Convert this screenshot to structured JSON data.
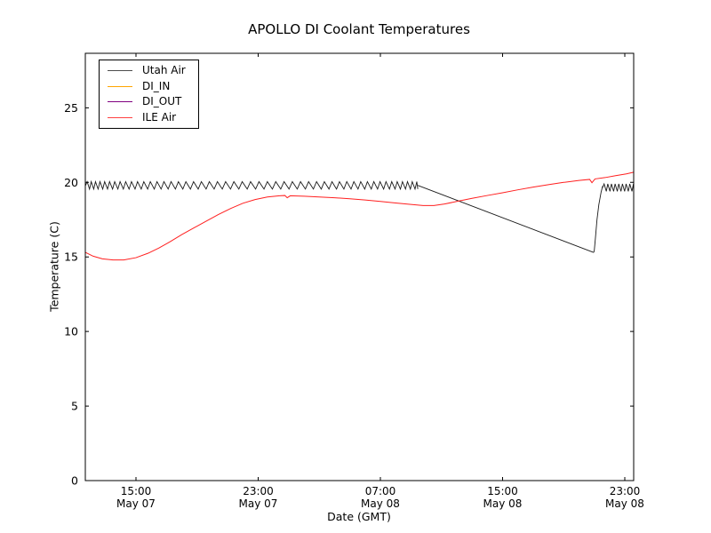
{
  "chart_data": {
    "type": "line",
    "title": "APOLLO DI Coolant Temperatures",
    "xlabel": "Date (GMT)",
    "ylabel": "Temperature (C)",
    "x_unit": "hours since May 07 00:00 GMT",
    "xlim": [
      11.7,
      47.58
    ],
    "ylim": [
      0,
      28.66
    ],
    "grid": false,
    "yticks": [
      0,
      5,
      10,
      15,
      20,
      25
    ],
    "xticks": [
      {
        "hour": 15,
        "time": "15:00",
        "date": "May 07"
      },
      {
        "hour": 23,
        "time": "23:00",
        "date": "May 07"
      },
      {
        "hour": 31,
        "time": "07:00",
        "date": "May 08"
      },
      {
        "hour": 39,
        "time": "15:00",
        "date": "May 08"
      },
      {
        "hour": 47,
        "time": "23:00",
        "date": "May 08"
      }
    ],
    "legend": {
      "position": "upper left",
      "entries": [
        {
          "name": "Utah Air",
          "color": "#4d4d4d"
        },
        {
          "name": "DI_IN",
          "color": "#ffa500"
        },
        {
          "name": "DI_OUT",
          "color": "#800080"
        },
        {
          "name": "ILE Air",
          "color": "#ff4040"
        }
      ]
    },
    "series": [
      {
        "name": "Utah Air",
        "color": "#1a1a1a",
        "width": 0.9,
        "segments": [
          {
            "type": "sawtooth",
            "t": [
              11.7,
              33.45
            ],
            "low": 19.55,
            "high": 20.05,
            "period_hours": [
              0.26,
              0.55,
              0.28
            ]
          },
          {
            "type": "line",
            "points": [
              [
                33.45,
                19.8
              ],
              [
                44.96,
                15.3
              ]
            ]
          },
          {
            "type": "line",
            "points": [
              [
                44.96,
                15.3
              ],
              [
                45.0,
                15.4
              ],
              [
                45.08,
                16.3
              ],
              [
                45.18,
                17.5
              ],
              [
                45.3,
                18.5
              ],
              [
                45.45,
                19.35
              ],
              [
                45.55,
                19.75
              ]
            ]
          },
          {
            "type": "sawtooth",
            "t": [
              45.55,
              47.58
            ],
            "low": 19.4,
            "high": 19.9,
            "period_hours": [
              0.24,
              0.24,
              0.24
            ]
          }
        ]
      },
      {
        "name": "DI_IN",
        "color": "#ffa500",
        "width": 1,
        "segments": [
          {
            "type": "line",
            "points": [
              [
                11.7,
                0
              ],
              [
                47.58,
                0
              ]
            ]
          }
        ]
      },
      {
        "name": "DI_OUT",
        "color": "#800080",
        "width": 1,
        "opacity": 0.75,
        "segments": [
          {
            "type": "line",
            "points": [
              [
                11.7,
                0
              ],
              [
                47.58,
                0
              ]
            ]
          }
        ]
      },
      {
        "name": "ILE Air",
        "color": "#ff1f1f",
        "width": 1,
        "segments": [
          {
            "type": "line",
            "points": [
              [
                11.7,
                15.3
              ],
              [
                12.2,
                15.05
              ],
              [
                12.8,
                14.87
              ],
              [
                13.5,
                14.8
              ],
              [
                14.2,
                14.8
              ],
              [
                15.0,
                14.95
              ],
              [
                15.8,
                15.25
              ],
              [
                16.5,
                15.6
              ],
              [
                17.2,
                16.0
              ],
              [
                18.0,
                16.5
              ],
              [
                18.8,
                16.95
              ],
              [
                19.6,
                17.4
              ],
              [
                20.4,
                17.85
              ],
              [
                21.2,
                18.25
              ],
              [
                22.0,
                18.6
              ],
              [
                22.8,
                18.85
              ],
              [
                23.6,
                19.02
              ],
              [
                24.4,
                19.1
              ],
              [
                24.75,
                19.12
              ],
              [
                24.9,
                18.97
              ],
              [
                25.1,
                19.1
              ],
              [
                26.0,
                19.07
              ],
              [
                27.0,
                19.02
              ],
              [
                28.0,
                18.97
              ],
              [
                29.0,
                18.9
              ],
              [
                30.0,
                18.82
              ],
              [
                31.0,
                18.72
              ],
              [
                32.0,
                18.62
              ],
              [
                33.0,
                18.52
              ],
              [
                33.8,
                18.45
              ],
              [
                34.5,
                18.45
              ],
              [
                35.2,
                18.55
              ],
              [
                36.0,
                18.72
              ],
              [
                37.0,
                18.93
              ],
              [
                38.0,
                19.12
              ],
              [
                39.0,
                19.3
              ],
              [
                40.0,
                19.5
              ],
              [
                41.0,
                19.68
              ],
              [
                42.0,
                19.85
              ],
              [
                43.0,
                20.0
              ],
              [
                44.0,
                20.13
              ],
              [
                44.7,
                20.2
              ],
              [
                44.85,
                19.98
              ],
              [
                45.05,
                20.23
              ],
              [
                45.7,
                20.32
              ],
              [
                46.4,
                20.45
              ],
              [
                47.1,
                20.57
              ],
              [
                47.58,
                20.68
              ]
            ]
          }
        ]
      }
    ]
  }
}
